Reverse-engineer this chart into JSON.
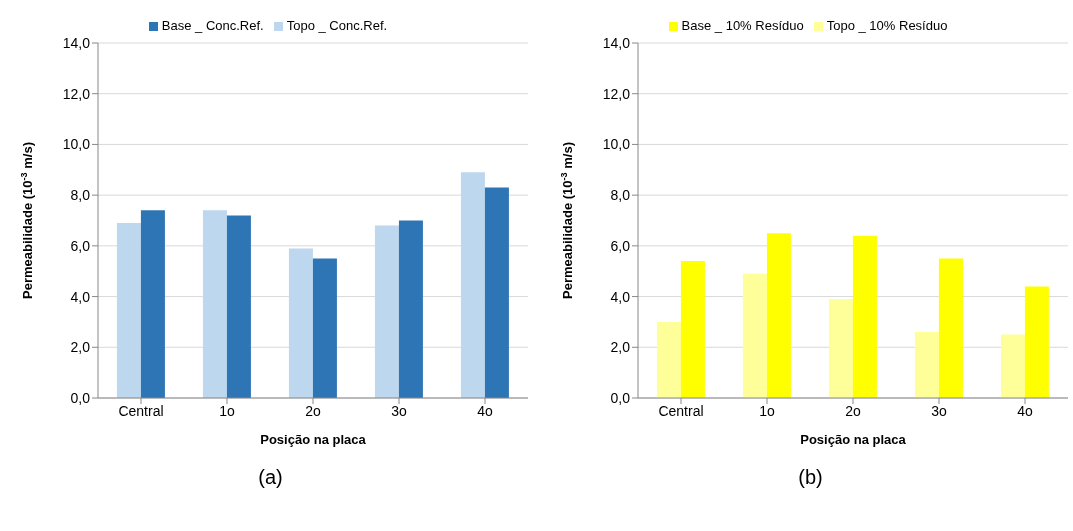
{
  "chart_data": [
    {
      "type": "bar",
      "title": "(a)",
      "xlabel": "Posição na placa",
      "ylabel": "Permeabilidade  (10$^{-3}$ m/s)",
      "categories": [
        "Central",
        "1o",
        "2o",
        "3o",
        "4o"
      ],
      "series": [
        {
          "name": "Topo _ Conc.Ref.",
          "color": "#bdd7ee",
          "values": [
            6.9,
            7.4,
            5.9,
            6.8,
            8.9
          ]
        },
        {
          "name": "Base _ Conc.Ref.",
          "color": "#2e75b6",
          "values": [
            7.4,
            7.2,
            5.5,
            7.0,
            8.3
          ]
        }
      ],
      "ylim": [
        0,
        14
      ],
      "yticks": [
        {
          "value": 0,
          "label": "0,0"
        },
        {
          "value": 2,
          "label": "2,0"
        },
        {
          "value": 4,
          "label": "4,0"
        },
        {
          "value": 6,
          "label": "6,0"
        },
        {
          "value": 8,
          "label": "8,0"
        },
        {
          "value": 10,
          "label": "10,0"
        },
        {
          "value": 12,
          "label": "12,0"
        },
        {
          "value": 14,
          "label": "14,0"
        }
      ],
      "grid": "y",
      "legend": "top"
    },
    {
      "type": "bar",
      "title": "(b)",
      "xlabel": "Posição na placa",
      "ylabel": "Permeabilidade  (10$^{-3}$ m/s)",
      "categories": [
        "Central",
        "1o",
        "2o",
        "3o",
        "4o"
      ],
      "series": [
        {
          "name": "Topo _ 10% Resíduo",
          "color": "#ffff99",
          "values": [
            3.0,
            4.9,
            3.9,
            2.6,
            2.5
          ]
        },
        {
          "name": "Base _ 10% Resíduo",
          "color": "#ffff00",
          "values": [
            5.4,
            6.5,
            6.4,
            5.5,
            4.4
          ]
        }
      ],
      "ylim": [
        0,
        14
      ],
      "yticks": [
        {
          "value": 0,
          "label": "0,0"
        },
        {
          "value": 2,
          "label": "2,0"
        },
        {
          "value": 4,
          "label": "4,0"
        },
        {
          "value": 6,
          "label": "6,0"
        },
        {
          "value": 8,
          "label": "8,0"
        },
        {
          "value": 10,
          "label": "10,0"
        },
        {
          "value": 12,
          "label": "12,0"
        },
        {
          "value": 14,
          "label": "14,0"
        }
      ],
      "grid": "y",
      "legend": "top"
    }
  ]
}
